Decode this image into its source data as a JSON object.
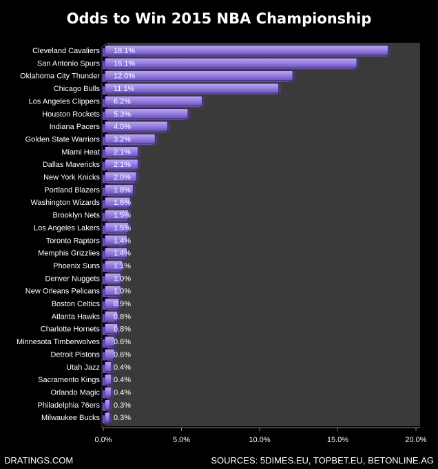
{
  "chart_data": {
    "type": "bar",
    "orientation": "horizontal",
    "title": "Odds to Win 2015 NBA Championship",
    "xlabel": "",
    "ylabel": "",
    "xlim": [
      0,
      20
    ],
    "ticks": [
      0,
      5,
      10,
      15,
      20
    ],
    "tick_labels": [
      "0.0%",
      "5.0%",
      "10.0%",
      "15.0%",
      "20.0%"
    ],
    "grid": false,
    "legend": "none",
    "categories": [
      "Cleveland Cavaliers",
      "San Antonio Spurs",
      "Oklahoma City Thunder",
      "Chicago Bulls",
      "Los Angeles Clippers",
      "Houston Rockets",
      "Indiana Pacers",
      "Golden State Warriors",
      "Miami Heat",
      "Dallas Mavericks",
      "New York Knicks",
      "Portland Blazers",
      "Washington Wizards",
      "Brooklyn Nets",
      "Los Angeles Lakers",
      "Toronto Raptors",
      "Memphis Grizzlies",
      "Phoenix Suns",
      "Denver Nuggets",
      "New Orleans Pelicans",
      "Boston Celtics",
      "Atlanta Hawks",
      "Charlotte Hornets",
      "Minnesota Timberwolves",
      "Detroit Pistons",
      "Utah Jazz",
      "Sacramento Kings",
      "Orlando Magic",
      "Philadelphia 76ers",
      "Milwaukee Bucks"
    ],
    "values": [
      18.1,
      16.1,
      12.0,
      11.1,
      6.2,
      5.3,
      4.0,
      3.2,
      2.1,
      2.1,
      2.0,
      1.8,
      1.6,
      1.5,
      1.5,
      1.4,
      1.4,
      1.1,
      1.0,
      1.0,
      0.9,
      0.8,
      0.8,
      0.6,
      0.6,
      0.4,
      0.4,
      0.4,
      0.3,
      0.3
    ],
    "data_labels": [
      "18.1%",
      "16.1%",
      "12.0%",
      "11.1%",
      "6.2%",
      "5.3%",
      "4.0%",
      "3.2%",
      "2.1%",
      "2.1%",
      "2.0%",
      "1.8%",
      "1.6%",
      "1.5%",
      "1.5%",
      "1.4%",
      "1.4%",
      "1.1%",
      "1.0%",
      "1.0%",
      "0.9%",
      "0.8%",
      "0.8%",
      "0.6%",
      "0.6%",
      "0.4%",
      "0.4%",
      "0.4%",
      "0.3%",
      "0.3%"
    ]
  },
  "footer": {
    "left": "DRATINGS.COM",
    "right": "SOURCES: 5DIMES.EU, TOPBET.EU, BETONLINE.AG"
  },
  "colors": {
    "background": "#000000",
    "plot_area": "#3a3a3a",
    "bar_top": "#b9a8ee",
    "bar_bottom": "#6c4fbf",
    "bar_side": "#4a3690",
    "bar_edge": "#2a1d5c",
    "text": "#ffffff"
  }
}
